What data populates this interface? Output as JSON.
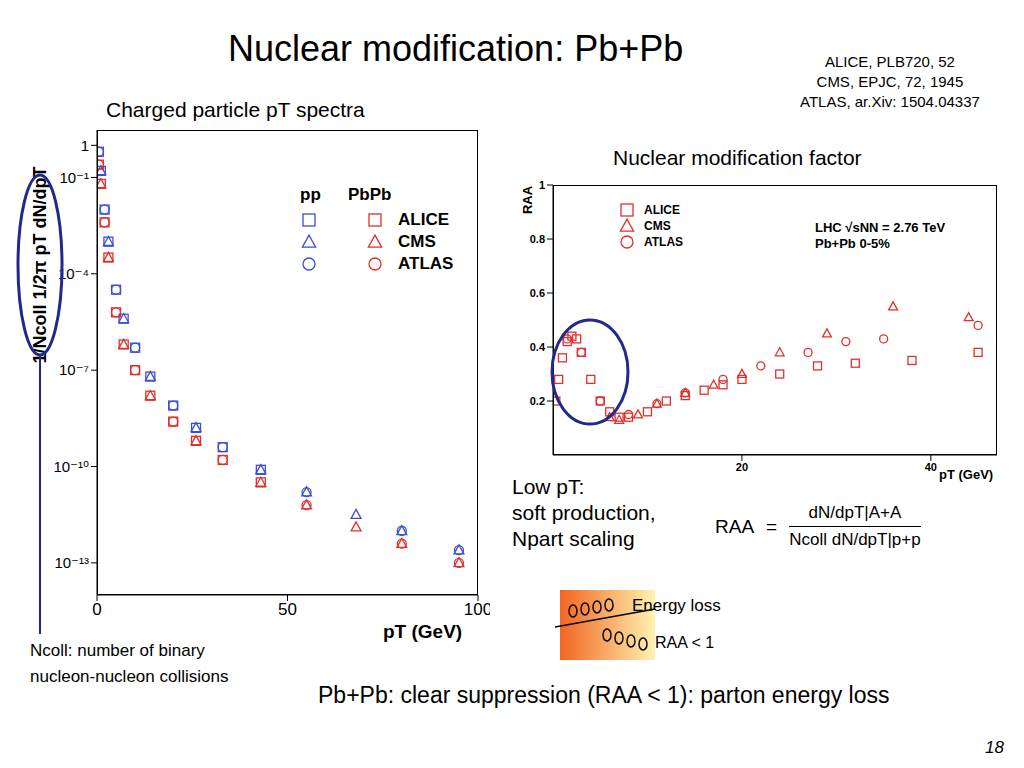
{
  "slide": {
    "title": "Nuclear modification: Pb+Pb",
    "references": [
      "ALICE, PLB720, 52",
      "CMS, EPJC, 72, 1945",
      "ATLAS, ar.Xiv: 1504.04337"
    ],
    "low_pt_note": [
      "Low pT:",
      "soft production,",
      "Npart scaling"
    ],
    "formula": {
      "lhs": "RAA",
      "equals": "=",
      "numerator": "dN/dpT|A+A",
      "denominator": "Ncoll dN/dpT|p+p"
    },
    "energy_loss": "Energy loss",
    "raa_lt_1": "RAA < 1",
    "ncoll_note": [
      "Ncoll: number of binary",
      "nucleon-nucleon collisions"
    ],
    "conclusion": "Pb+Pb: clear suppression (RAA < 1): parton energy loss",
    "page": 18
  },
  "chart_data": [
    {
      "type": "scatter",
      "title": "Charged particle pT spectra",
      "x_label": "pT (GeV)",
      "y_label": "1/Ncoll 1/2π pT dN/dpT",
      "log": "y",
      "xlim": [
        0,
        100
      ],
      "xticks": [
        0,
        50,
        100
      ],
      "ylim": [
        1e-14,
        3
      ],
      "yticks": [
        1,
        {
          "value": 0.1,
          "label": "10⁻¹"
        },
        {
          "value": 0.0001,
          "label": "10⁻⁴"
        },
        {
          "value": 1e-07,
          "label": "10⁻⁷"
        },
        {
          "value": 1e-10,
          "label": "10⁻¹⁰"
        },
        {
          "value": 1e-13,
          "label": "10⁻¹³"
        }
      ],
      "legend_columns": [
        "pp",
        "PbPb"
      ],
      "legend": "upper right",
      "series": [
        {
          "name": "ALICE",
          "system": "pp",
          "color": "#3b4fd6",
          "marker": "square",
          "x": [
            0.5,
            1,
            2,
            3,
            5,
            7,
            10,
            14,
            20,
            26,
            33,
            43
          ],
          "values": [
            0.63,
            0.16,
            0.01,
            0.001,
            3.2e-05,
            4e-06,
            5e-07,
            6.3e-08,
            7.9e-09,
            1.6e-09,
            4e-10,
            7.9e-11
          ]
        },
        {
          "name": "CMS",
          "system": "pp",
          "color": "#3b4fd6",
          "marker": "triangle",
          "x": [
            1,
            3,
            7,
            14,
            26,
            43,
            55,
            68,
            80,
            95
          ],
          "values": [
            0.16,
            0.001,
            4e-06,
            6.3e-08,
            1.6e-09,
            7.9e-11,
            1.6e-11,
            3.2e-12,
            1e-12,
            2.5e-13
          ]
        },
        {
          "name": "ATLAS",
          "system": "pp",
          "color": "#3b4fd6",
          "marker": "circle",
          "x": [
            0.5,
            2,
            5,
            10,
            20,
            33,
            55,
            80,
            95
          ],
          "values": [
            0.63,
            0.01,
            3.2e-05,
            5e-07,
            7.9e-09,
            4e-10,
            1.6e-11,
            1e-12,
            2.5e-13
          ]
        },
        {
          "name": "ALICE",
          "system": "PbPb",
          "color": "#e0302c",
          "marker": "square",
          "x": [
            0.5,
            1,
            2,
            3,
            5,
            7,
            10,
            14,
            20,
            26,
            33,
            43
          ],
          "values": [
            0.25,
            0.063,
            0.004,
            0.00032,
            6.3e-06,
            6.3e-07,
            1e-07,
            1.6e-08,
            2.5e-09,
            6.3e-10,
            1.6e-10,
            3.2e-11
          ]
        },
        {
          "name": "CMS",
          "system": "PbPb",
          "color": "#e0302c",
          "marker": "triangle",
          "x": [
            1,
            3,
            7,
            14,
            26,
            43,
            55,
            68,
            80,
            95
          ],
          "values": [
            0.063,
            0.00032,
            6.3e-07,
            1.6e-08,
            6.3e-10,
            3.2e-11,
            6.3e-12,
            1.3e-12,
            4e-13,
            1e-13
          ]
        },
        {
          "name": "ATLAS",
          "system": "PbPb",
          "color": "#e0302c",
          "marker": "circle",
          "x": [
            0.5,
            2,
            5,
            10,
            20,
            33,
            55,
            80,
            95
          ],
          "values": [
            0.25,
            0.004,
            6.3e-06,
            1e-07,
            2.5e-09,
            1.6e-10,
            6.3e-12,
            4e-13,
            1e-13
          ]
        }
      ]
    },
    {
      "type": "scatter",
      "title": "Nuclear modification factor",
      "x_label": "pT (GeV)",
      "y_label": "RAA",
      "xlim": [
        0,
        47
      ],
      "xticks": [
        20,
        40
      ],
      "ylim": [
        0,
        1
      ],
      "yticks": [
        0.2,
        0.4,
        0.6,
        0.8,
        1
      ],
      "legend": "upper left",
      "annotations": [
        "LHC √sNN = 2.76 TeV",
        "Pb+Pb 0-5%"
      ],
      "series": [
        {
          "name": "ALICE",
          "color": "#e0302c",
          "marker": "square",
          "x": [
            0.3,
            0.6,
            1,
            1.5,
            2,
            2.5,
            3,
            4,
            5,
            6,
            7,
            8,
            10,
            12,
            14,
            16,
            18,
            20,
            24,
            28,
            32,
            38,
            45
          ],
          "values": [
            0.2,
            0.28,
            0.36,
            0.42,
            0.44,
            0.43,
            0.38,
            0.28,
            0.2,
            0.16,
            0.14,
            0.14,
            0.16,
            0.2,
            0.22,
            0.24,
            0.26,
            0.28,
            0.3,
            0.33,
            0.34,
            0.35,
            0.38
          ]
        },
        {
          "name": "CMS",
          "color": "#e0302c",
          "marker": "triangle",
          "x": [
            6,
            7,
            9,
            11,
            14,
            17,
            20,
            24,
            29,
            36,
            44
          ],
          "values": [
            0.14,
            0.13,
            0.15,
            0.19,
            0.23,
            0.26,
            0.3,
            0.38,
            0.45,
            0.55,
            0.51
          ]
        },
        {
          "name": "ATLAS",
          "color": "#e0302c",
          "marker": "circle",
          "x": [
            1.5,
            3,
            5,
            8,
            11,
            14,
            18,
            22,
            27,
            31,
            35,
            45
          ],
          "values": [
            0.43,
            0.38,
            0.2,
            0.15,
            0.19,
            0.23,
            0.28,
            0.33,
            0.38,
            0.42,
            0.43,
            0.48
          ]
        }
      ]
    }
  ]
}
